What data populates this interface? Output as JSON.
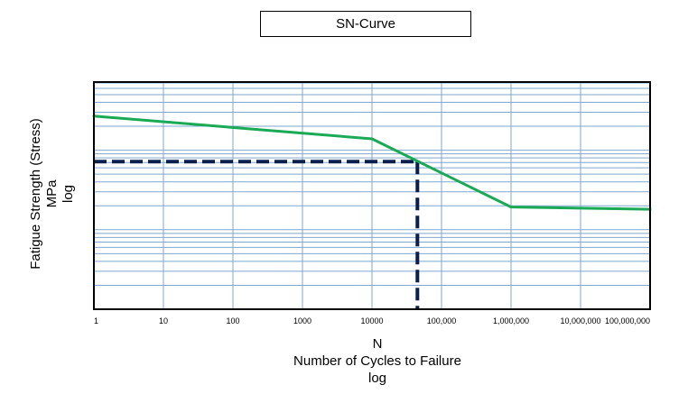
{
  "chart_data": {
    "type": "line",
    "title": "SN-Curve",
    "ylabel": [
      "Fatigue Strength (Stress)",
      "MPa",
      "log"
    ],
    "xlabel": [
      "N",
      "Number of Cycles to Failure",
      "log"
    ],
    "x_scale": "log",
    "y_scale": "log",
    "grid": true,
    "x_tick_values": [
      1,
      10,
      100,
      1000,
      10000,
      100000,
      1000000,
      10000000,
      100000000
    ],
    "x_tick_labels": [
      "1",
      "10",
      "100",
      "1000",
      "10000",
      "100,000",
      "1,000,000",
      "10,000,000",
      "100,000,000"
    ],
    "xlim": [
      1,
      100000000
    ],
    "series": [
      {
        "values_x": [
          1,
          10000,
          1000000,
          100000000
        ],
        "values_y": [
          0.85,
          0.75,
          0.45,
          0.44
        ],
        "color": "#1aaa55"
      }
    ],
    "reference_point": {
      "x": 45000,
      "y": 0.65,
      "color": "#0b1f4d",
      "style": "dashed"
    },
    "y_axis_units": "relative (no tick labels shown)",
    "colors": {
      "grid": "#7fa7cf",
      "curve": "#1aaa55",
      "reference": "#0b1f4d",
      "frame": "#000000"
    }
  }
}
